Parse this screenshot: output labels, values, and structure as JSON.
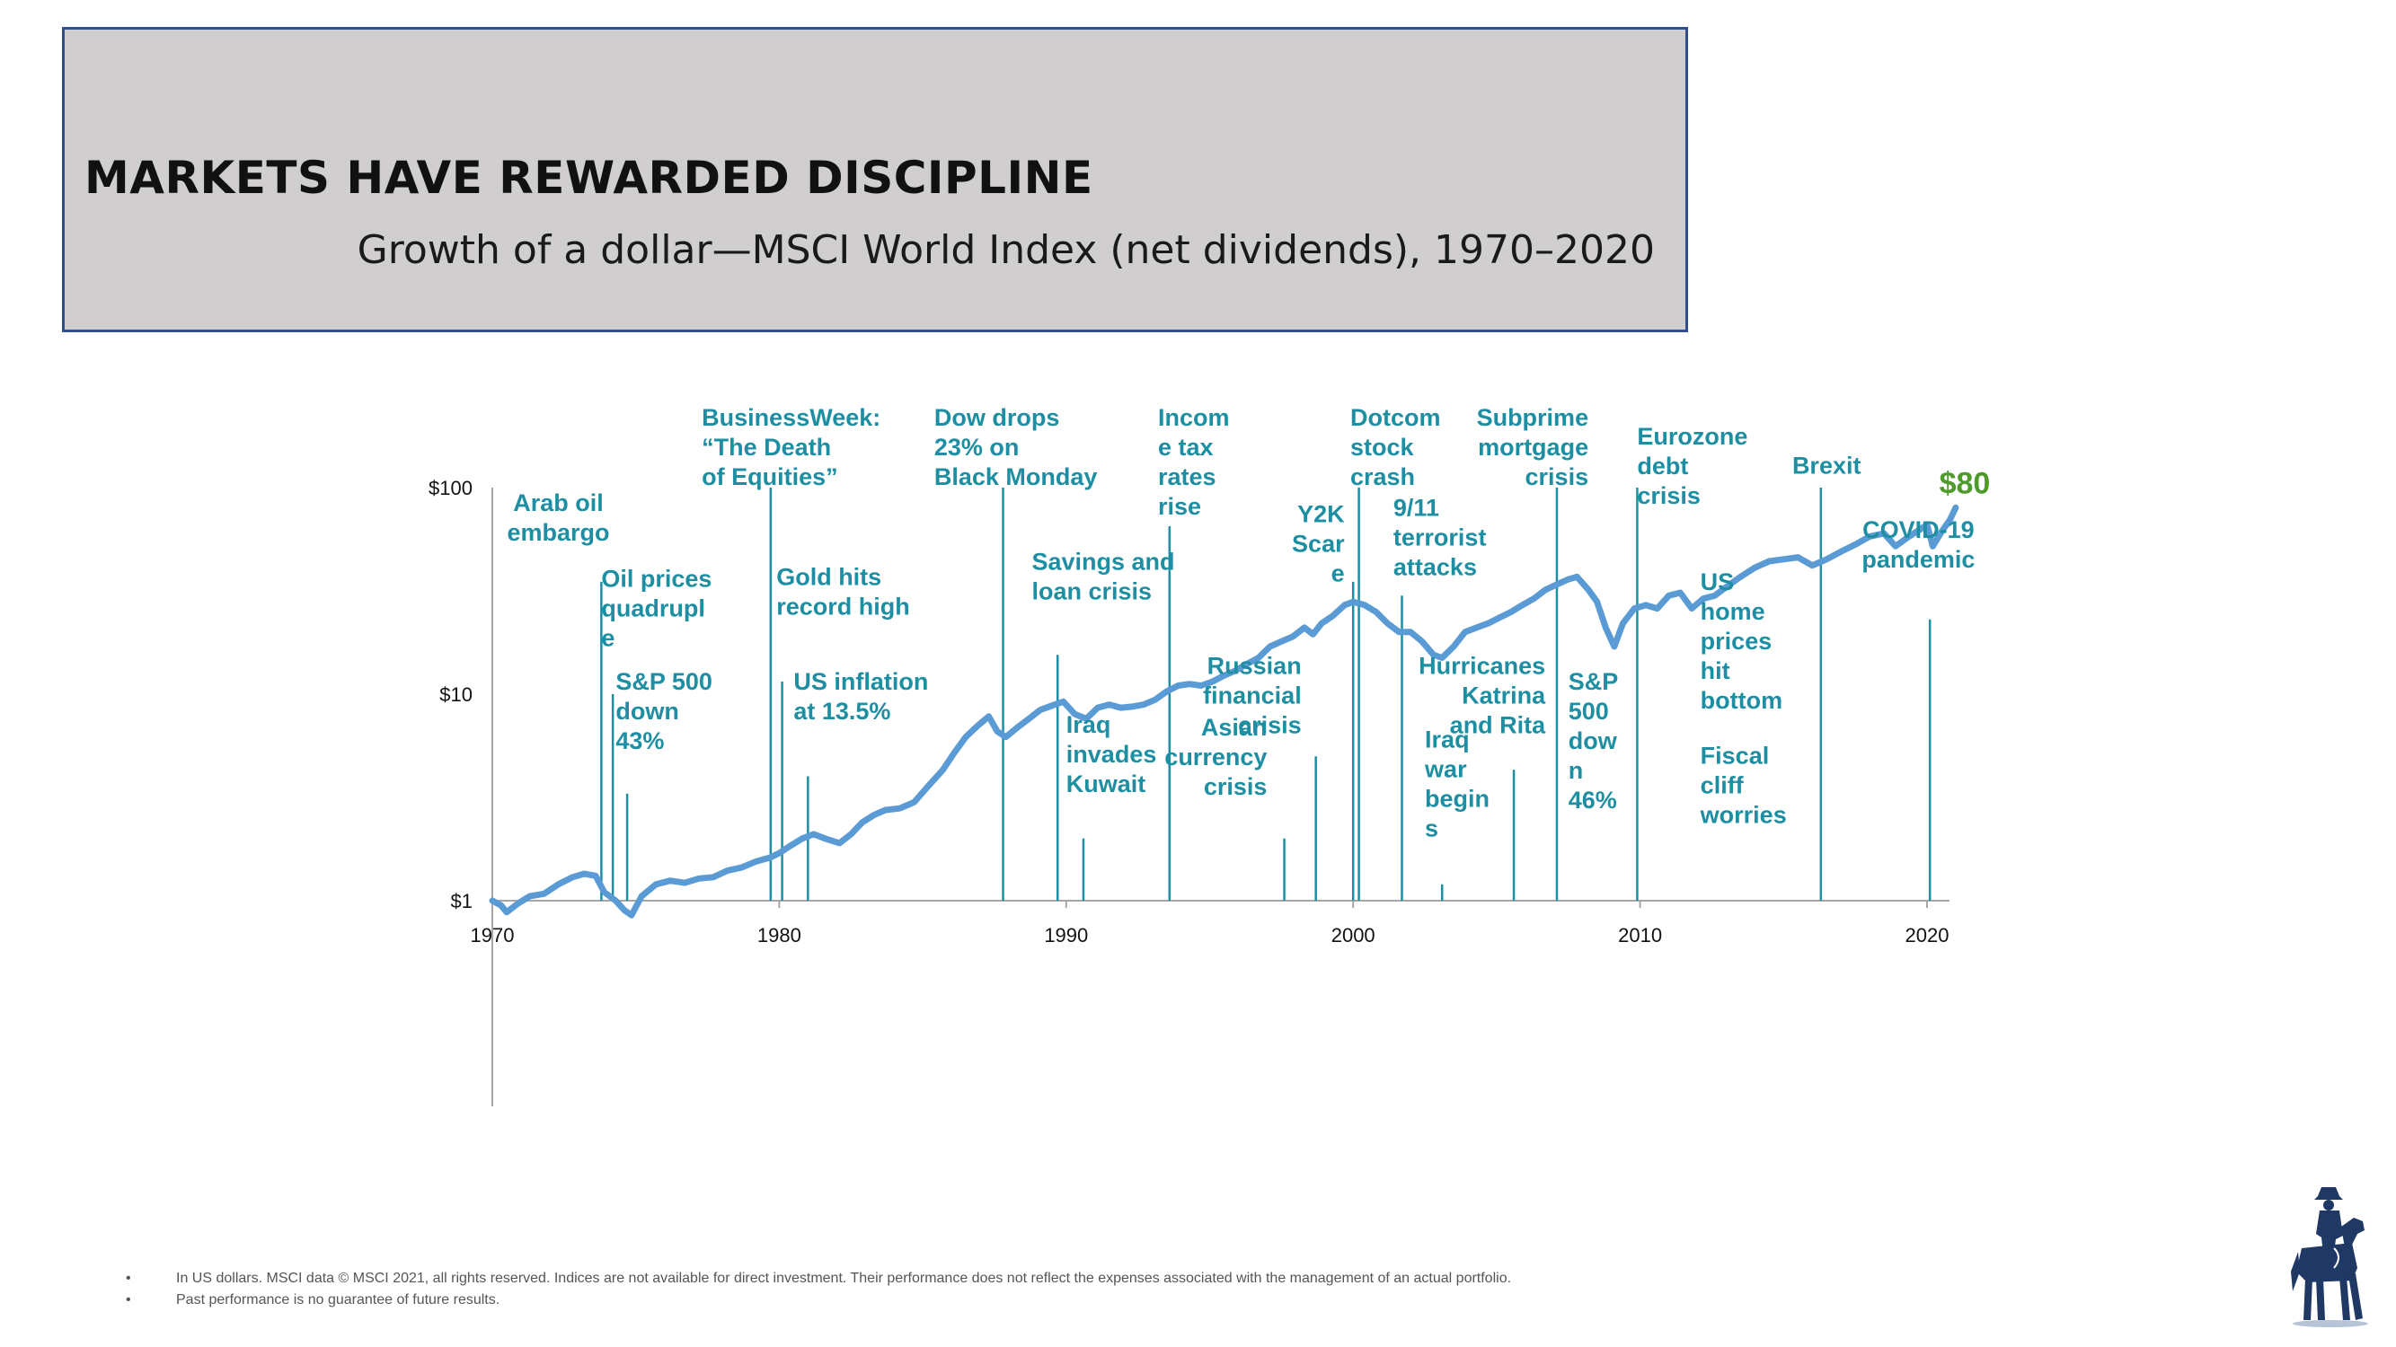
{
  "header": {
    "title": "MARKETS HAVE REWARDED DISCIPLINE",
    "subtitle": "Growth of a dollar—MSCI World Index (net dividends), 1970–2020"
  },
  "chart_data": {
    "type": "line",
    "title": "Growth of a dollar—MSCI World Index (net dividends), 1970–2020",
    "xlabel": "",
    "ylabel": "",
    "y_scale": "log",
    "ylim": [
      1,
      100
    ],
    "xlim": [
      1970,
      2021
    ],
    "x_ticks": [
      "1970",
      "1980",
      "1990",
      "2000",
      "2010",
      "2020"
    ],
    "y_ticks": [
      "$1",
      "$10",
      "$100"
    ],
    "line_color": "#5b9bd5",
    "annotation_color": "#1e8fa3",
    "end_value_label": "$80",
    "end_value_color": "#4e9a2a",
    "series": [
      {
        "x": [
          1970.0,
          1970.3,
          1970.5,
          1970.9,
          1971.3,
          1971.8,
          1972.3,
          1972.8,
          1973.2,
          1973.6,
          1973.9,
          1974.3,
          1974.6,
          1974.85,
          1975.2,
          1975.7,
          1976.2,
          1976.7,
          1977.2,
          1977.7,
          1978.2,
          1978.7,
          1979.2,
          1979.7,
          1980.0,
          1980.4,
          1980.8,
          1981.2,
          1981.6,
          1982.1,
          1982.5,
          1982.9,
          1983.3,
          1983.7,
          1984.2,
          1984.7,
          1985.2,
          1985.7,
          1986.1,
          1986.5,
          1986.9,
          1987.3,
          1987.6,
          1987.9,
          1988.3,
          1988.7,
          1989.1,
          1989.5,
          1989.9,
          1990.3,
          1990.7,
          1991.1,
          1991.5,
          1991.9,
          1992.3,
          1992.7,
          1993.1,
          1993.5,
          1993.9,
          1994.3,
          1994.7,
          1995.1,
          1995.5,
          1995.9,
          1996.3,
          1996.7,
          1997.1,
          1997.5,
          1997.9,
          1998.3,
          1998.6,
          1998.9,
          1999.3,
          1999.7,
          2000.0,
          2000.4,
          2000.8,
          2001.2,
          2001.6,
          2002.0,
          2002.4,
          2002.8,
          2003.1,
          2003.5,
          2003.9,
          2004.3,
          2004.7,
          2005.1,
          2005.5,
          2005.9,
          2006.3,
          2006.7,
          2007.1,
          2007.5,
          2007.8,
          2008.2,
          2008.5,
          2008.8,
          2009.1,
          2009.4,
          2009.8,
          2010.2,
          2010.6,
          2011.0,
          2011.4,
          2011.8,
          2012.2,
          2012.6,
          2013.0,
          2013.5,
          2014.0,
          2014.5,
          2015.0,
          2015.5,
          2016.0,
          2016.5,
          2017.0,
          2017.5,
          2018.0,
          2018.5,
          2018.9,
          2019.3,
          2019.7,
          2020.0,
          2020.2,
          2020.5,
          2020.8,
          2021.0
        ],
        "y": [
          1.0,
          0.95,
          0.88,
          0.97,
          1.05,
          1.08,
          1.2,
          1.3,
          1.35,
          1.32,
          1.1,
          1.0,
          0.9,
          0.85,
          1.05,
          1.2,
          1.25,
          1.22,
          1.28,
          1.3,
          1.4,
          1.45,
          1.55,
          1.62,
          1.7,
          1.85,
          2.0,
          2.1,
          2.0,
          1.9,
          2.1,
          2.4,
          2.6,
          2.75,
          2.8,
          3.0,
          3.6,
          4.3,
          5.2,
          6.2,
          7.0,
          7.8,
          6.6,
          6.2,
          6.9,
          7.6,
          8.4,
          8.8,
          9.2,
          8.0,
          7.6,
          8.6,
          8.9,
          8.6,
          8.7,
          8.9,
          9.4,
          10.3,
          11.0,
          11.2,
          11.0,
          11.5,
          12.3,
          13.0,
          14.0,
          15.0,
          17.0,
          18.0,
          19.0,
          21.0,
          19.5,
          22.0,
          24.0,
          27.0,
          28.0,
          27.0,
          25.0,
          22.0,
          20.0,
          20.0,
          18.0,
          15.5,
          15.0,
          17.0,
          20.0,
          21.0,
          22.0,
          23.5,
          25.0,
          27.0,
          29.0,
          32.0,
          34.0,
          36.0,
          37.0,
          32.0,
          28.0,
          21.0,
          17.0,
          22.0,
          26.0,
          27.0,
          26.0,
          30.0,
          31.0,
          26.0,
          29.0,
          30.0,
          33.0,
          37.0,
          41.0,
          44.0,
          45.0,
          46.0,
          42.0,
          45.0,
          49.0,
          53.0,
          58.0,
          60.0,
          52.0,
          57.0,
          62.0,
          66.0,
          52.0,
          61.0,
          70.0,
          80.0
        ]
      }
    ],
    "annotations": [
      {
        "x": 1973.8,
        "y": 35.0,
        "lines": [
          "Arab oil",
          "embargo"
        ],
        "anchor": "middle",
        "label_x": 1972.3,
        "label_y": 77.0
      },
      {
        "x": 1974.2,
        "y": 10.0,
        "lines": [
          "Oil prices",
          "quadrupl",
          "e"
        ],
        "anchor": "start",
        "label_x": 1973.8,
        "label_y": 33.0
      },
      {
        "x": 1974.7,
        "y": 3.3,
        "lines": [
          "S&P 500",
          "down",
          "43%"
        ],
        "anchor": "start",
        "label_x": 1974.3,
        "label_y": 10.5
      },
      {
        "x": 1979.7,
        "y": 100.0,
        "lines": [
          "BusinessWeek:",
          "“The Death",
          "of Equities”"
        ],
        "anchor": "start",
        "label_x": 1977.3,
        "label_y": 200.0
      },
      {
        "x": 1980.1,
        "y": 11.5,
        "lines": [
          "Gold hits",
          "record high"
        ],
        "anchor": "start",
        "label_x": 1979.9,
        "label_y": 33.8
      },
      {
        "x": 1981.0,
        "y": 4.0,
        "lines": [
          "US inflation",
          "at 13.5%"
        ],
        "anchor": "start",
        "label_x": 1980.5,
        "label_y": 10.5
      },
      {
        "x": 1987.8,
        "y": 100.0,
        "lines": [
          "Dow drops",
          "23% on",
          "Black Monday"
        ],
        "anchor": "start",
        "label_x": 1985.4,
        "label_y": 200.0
      },
      {
        "x": 1989.7,
        "y": 15.5,
        "lines": [
          "Savings and",
          "loan crisis"
        ],
        "anchor": "start",
        "label_x": 1988.8,
        "label_y": 40.0
      },
      {
        "x": 1990.6,
        "y": 2.0,
        "lines": [
          "Iraq",
          "invades",
          "Kuwait"
        ],
        "anchor": "start",
        "label_x": 1990.0,
        "label_y": 6.5
      },
      {
        "x": 1993.6,
        "y": 65.0,
        "lines": [
          "Incom",
          "e tax",
          "rates",
          "rise"
        ],
        "anchor": "start",
        "label_x": 1993.2,
        "label_y": 200.0
      },
      {
        "x": 1997.6,
        "y": 2.0,
        "lines": [
          "Asian",
          "currency",
          "crisis"
        ],
        "anchor": "end",
        "label_x": 1997.0,
        "label_y": 6.3
      },
      {
        "x": 1998.7,
        "y": 5.0,
        "lines": [
          "Russian",
          "financial",
          "crisis"
        ],
        "anchor": "end",
        "label_x": 1998.2,
        "label_y": 12.5
      },
      {
        "x": 2000.0,
        "y": 35.0,
        "lines": [
          "Y2K",
          "Scar",
          "e"
        ],
        "anchor": "end",
        "label_x": 1999.7,
        "label_y": 68.0
      },
      {
        "x": 2000.2,
        "y": 100.0,
        "lines": [
          "Dotcom",
          "stock",
          "crash"
        ],
        "anchor": "start",
        "label_x": 1999.9,
        "label_y": 200.0
      },
      {
        "x": 2001.7,
        "y": 30.0,
        "lines": [
          "9/11",
          "terrorist",
          "attacks"
        ],
        "anchor": "start",
        "label_x": 2001.4,
        "label_y": 73.0
      },
      {
        "x": 2003.1,
        "y": 1.2,
        "lines": [
          "Iraq",
          "war",
          "begin",
          "s"
        ],
        "anchor": "start",
        "label_x": 2002.5,
        "label_y": 5.5
      },
      {
        "x": 2005.6,
        "y": 4.3,
        "lines": [
          "Hurricanes",
          "Katrina",
          "and Rita"
        ],
        "anchor": "end",
        "label_x": 2006.7,
        "label_y": 12.5
      },
      {
        "x": 2007.1,
        "y": 100.0,
        "lines": [
          "Subprime",
          "mortgage",
          "crisis"
        ],
        "anchor": "end",
        "label_x": 2008.2,
        "label_y": 200.0
      },
      {
        "x": 2008.6,
        "y": 1.0,
        "lines": [
          "S&P",
          "500",
          "dow",
          "n",
          "46%"
        ],
        "anchor": "start",
        "label_x": 2007.5,
        "label_y": 10.5
      },
      {
        "x": 2009.9,
        "y": 100.0,
        "lines": [
          "Eurozone",
          "debt",
          "crisis"
        ],
        "anchor": "start",
        "label_x": 2009.9,
        "label_y": 162.0
      },
      {
        "x": 2012.8,
        "y": 1.0,
        "lines": [
          "US",
          "home",
          "prices",
          "hit",
          "bottom"
        ],
        "anchor": "start",
        "label_x": 2012.1,
        "label_y": 32.0
      },
      {
        "x": 2012.7,
        "y": 1.0,
        "lines": [
          "Fiscal",
          "cliff",
          "worries"
        ],
        "anchor": "start",
        "label_x": 2012.1,
        "label_y": 4.6
      },
      {
        "x": 2016.3,
        "y": 100.0,
        "lines": [
          "Brexit"
        ],
        "anchor": "middle",
        "label_x": 2016.5,
        "label_y": 117.0
      },
      {
        "x": 2020.1,
        "y": 23.0,
        "lines": [
          "COVID-19",
          "pandemic"
        ],
        "anchor": "middle",
        "label_x": 2019.7,
        "label_y": 57.0
      }
    ]
  },
  "footnotes": [
    {
      "bullet": "•",
      "text": "In US dollars. MSCI data © MSCI 2021, all rights reserved. Indices are not available for direct investment. Their performance does not reflect the expenses associated with the management of an actual portfolio."
    },
    {
      "bullet": "•",
      "text": "Past performance is no guarantee of future results."
    }
  ],
  "logo": {
    "icon": "cowboy-on-horse-logo-icon",
    "color": "#1f3864"
  }
}
